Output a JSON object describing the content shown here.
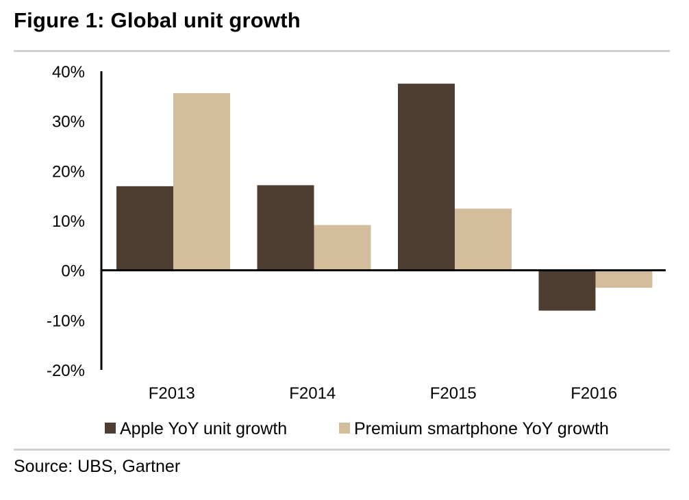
{
  "figure": {
    "title": "Figure 1: Global unit growth",
    "source": "Source: UBS, Gartner"
  },
  "chart_data": {
    "type": "bar",
    "categories": [
      "F2013",
      "F2014",
      "F2015",
      "F2016"
    ],
    "series": [
      {
        "name": "Apple YoY unit growth",
        "color": "#4e3d31",
        "values": [
          16.9,
          17.1,
          37.5,
          -8.1
        ]
      },
      {
        "name": "Premium smartphone YoY growth",
        "color": "#d3bd9d",
        "values": [
          35.6,
          9.1,
          12.4,
          -3.5
        ]
      }
    ],
    "ylim": [
      -20,
      40
    ],
    "yticks": [
      -20,
      -10,
      0,
      10,
      20,
      30,
      40
    ],
    "ytick_labels": [
      "-20%",
      "-10%",
      "0%",
      "10%",
      "20%",
      "30%",
      "40%"
    ],
    "grid": false,
    "legend_position": "bottom"
  }
}
